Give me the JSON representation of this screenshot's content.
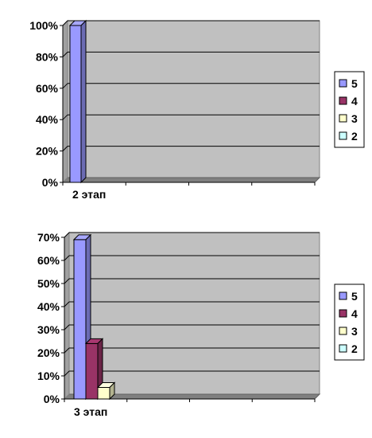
{
  "chart_data": [
    {
      "type": "bar",
      "categories": [
        "2 этап"
      ],
      "series": [
        {
          "name": "5",
          "values": [
            100
          ],
          "color": "#9999ff"
        },
        {
          "name": "4",
          "values": [
            0
          ],
          "color": "#993366"
        },
        {
          "name": "3",
          "values": [
            0
          ],
          "color": "#ffffcc"
        },
        {
          "name": "2",
          "values": [
            0
          ],
          "color": "#ccffff"
        }
      ],
      "ylim": [
        0,
        100
      ],
      "yticks": [
        "0%",
        "20%",
        "40%",
        "60%",
        "80%",
        "100%"
      ],
      "yunit": "%",
      "grid": true,
      "legend": "right",
      "style": "3d-clustered"
    },
    {
      "type": "bar",
      "categories": [
        "3 этап"
      ],
      "series": [
        {
          "name": "5",
          "values": [
            69
          ],
          "color": "#9999ff"
        },
        {
          "name": "4",
          "values": [
            24
          ],
          "color": "#993366"
        },
        {
          "name": "3",
          "values": [
            5
          ],
          "color": "#ffffcc"
        },
        {
          "name": "2",
          "values": [
            0
          ],
          "color": "#ccffff"
        }
      ],
      "ylim": [
        0,
        70
      ],
      "yticks": [
        "0%",
        "10%",
        "20%",
        "30%",
        "40%",
        "50%",
        "60%",
        "70%"
      ],
      "yunit": "%",
      "grid": true,
      "legend": "right",
      "style": "3d-clustered"
    }
  ],
  "colors": {
    "plot_wall": "#c0c0c0",
    "plot_floor": "#808080",
    "gridline": "#000000"
  }
}
